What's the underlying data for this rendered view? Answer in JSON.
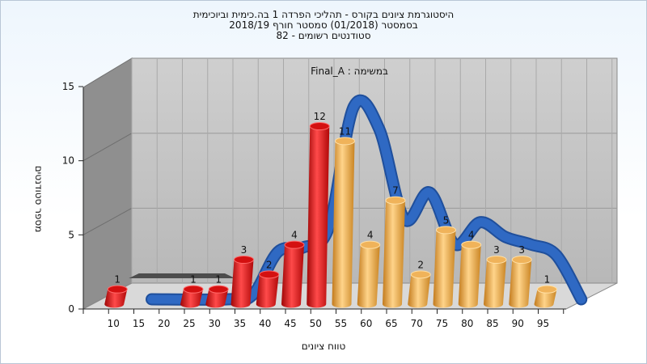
{
  "title_lines": [
    "היסטוגרמת ציונים בקורס - תהליכי הפרדה 1 בה.כימית וביוכימית",
    "בסמסטר  (01/2018)  סמסטר חורף 2018/19",
    "סטודנטים רשומים - 82"
  ],
  "colors": {
    "fail_bar": "#e01616",
    "pass_bar": "#e9a23b",
    "curve": "#2f69c3",
    "wall": "#c4c4c4",
    "left_wall": "#8c8c8c",
    "floor": "#d7d7d7"
  },
  "chart_data": {
    "type": "bar",
    "subtitle": "במשימה : Final_A",
    "xlabel": "טווח ציונים",
    "ylabel": "מספר סטודנטים",
    "ylim": [
      0,
      15
    ],
    "y_ticks": [
      0,
      5,
      10,
      15
    ],
    "x_ticks": [
      10,
      15,
      20,
      25,
      30,
      35,
      40,
      45,
      50,
      55,
      60,
      65,
      70,
      75,
      80,
      85,
      90,
      95
    ],
    "grid": true,
    "bars": [
      {
        "x": 10,
        "value": 1,
        "group": "fail"
      },
      {
        "x": 25,
        "value": 1,
        "group": "fail"
      },
      {
        "x": 30,
        "value": 1,
        "group": "fail"
      },
      {
        "x": 35,
        "value": 3,
        "group": "fail"
      },
      {
        "x": 40,
        "value": 2,
        "group": "fail"
      },
      {
        "x": 45,
        "value": 4,
        "group": "fail"
      },
      {
        "x": 50,
        "value": 12,
        "group": "fail"
      },
      {
        "x": 55,
        "value": 11,
        "group": "pass"
      },
      {
        "x": 60,
        "value": 4,
        "group": "pass"
      },
      {
        "x": 65,
        "value": 7,
        "group": "pass"
      },
      {
        "x": 70,
        "value": 2,
        "group": "pass"
      },
      {
        "x": 75,
        "value": 5,
        "group": "pass"
      },
      {
        "x": 80,
        "value": 4,
        "group": "pass"
      },
      {
        "x": 85,
        "value": 3,
        "group": "pass"
      },
      {
        "x": 90,
        "value": 3,
        "group": "pass"
      },
      {
        "x": 95,
        "value": 1,
        "group": "pass"
      }
    ],
    "curve": [
      {
        "x": 15,
        "y": 0
      },
      {
        "x": 30,
        "y": 0
      },
      {
        "x": 35,
        "y": 0.3
      },
      {
        "x": 40,
        "y": 3.2
      },
      {
        "x": 45,
        "y": 3.5
      },
      {
        "x": 50,
        "y": 4.8
      },
      {
        "x": 55,
        "y": 13
      },
      {
        "x": 60,
        "y": 11.5
      },
      {
        "x": 65,
        "y": 5.4
      },
      {
        "x": 70,
        "y": 7.2
      },
      {
        "x": 75,
        "y": 3.7
      },
      {
        "x": 80,
        "y": 5.2
      },
      {
        "x": 85,
        "y": 4.2
      },
      {
        "x": 90,
        "y": 3.7
      },
      {
        "x": 95,
        "y": 3.0
      },
      {
        "x": 100,
        "y": 0
      }
    ]
  }
}
